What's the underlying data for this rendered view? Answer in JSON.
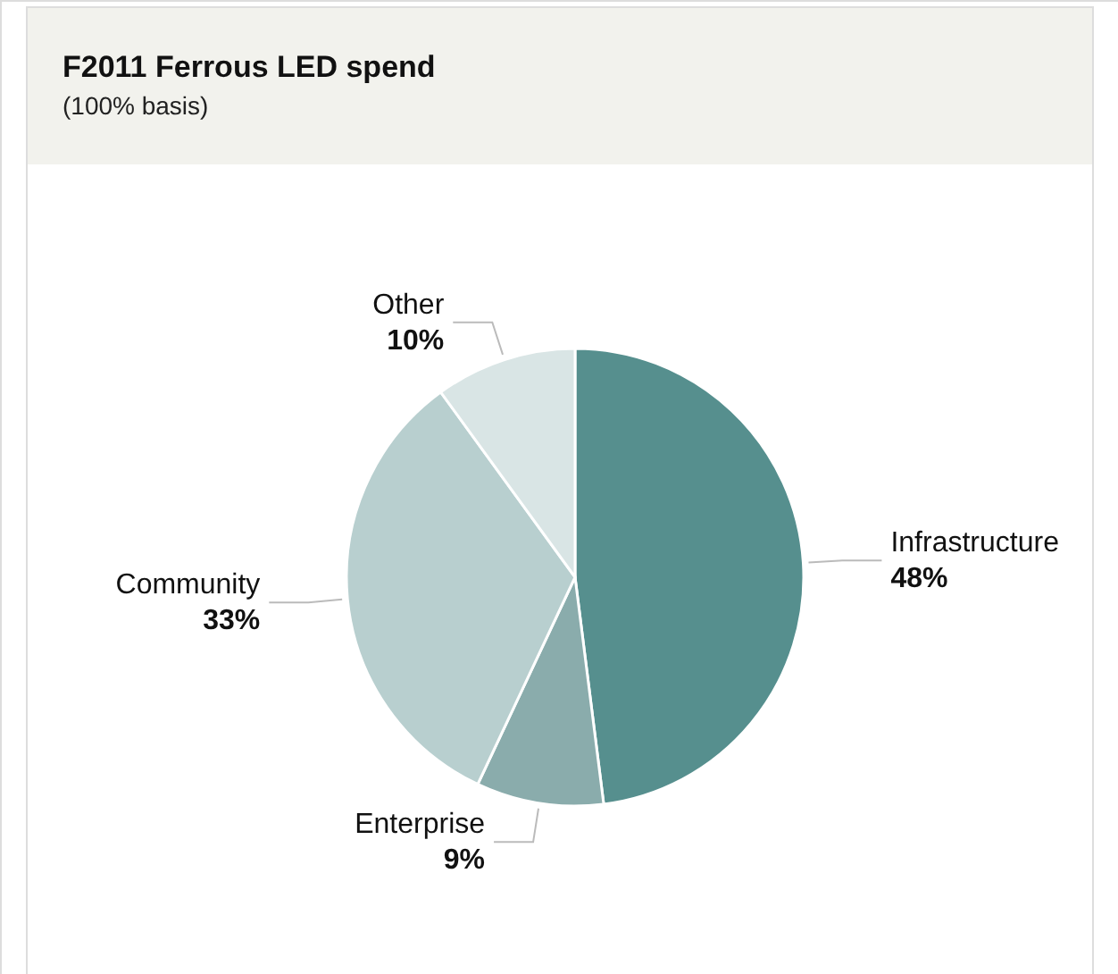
{
  "chart_data": {
    "type": "pie",
    "title": "F2011 Ferrous LED spend",
    "subtitle": "(100% basis)",
    "categories": [
      "Infrastructure",
      "Enterprise",
      "Community",
      "Other"
    ],
    "values": [
      48,
      9,
      33,
      10
    ],
    "colors": [
      "#568f8e",
      "#8aacac",
      "#b8cfcf",
      "#d9e5e5"
    ],
    "value_labels": [
      "48%",
      "9%",
      "33%",
      "10%"
    ]
  }
}
